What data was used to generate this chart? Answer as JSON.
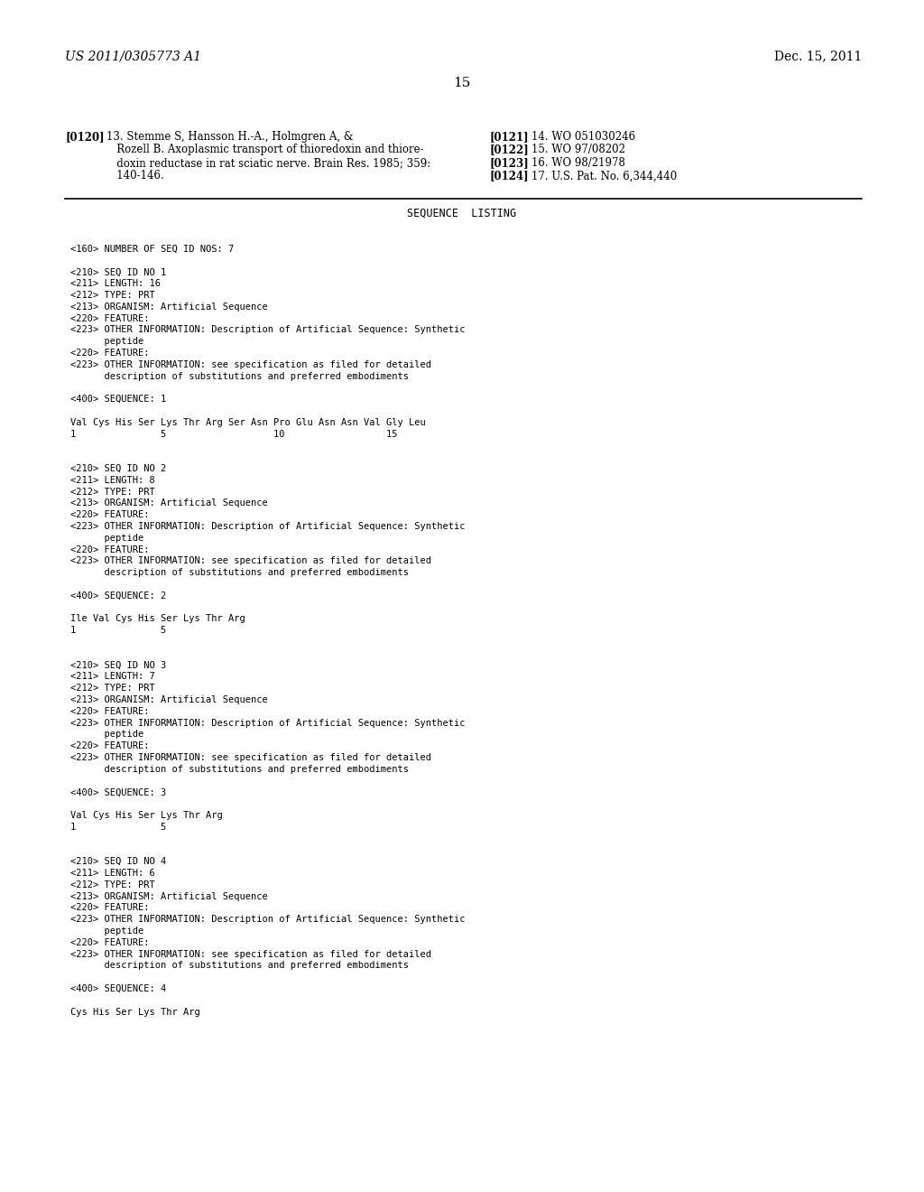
{
  "background_color": "#ffffff",
  "header_left": "US 2011/0305773 A1",
  "header_right": "Dec. 15, 2011",
  "page_number": "15",
  "ref_left_tag": "[0120]",
  "ref_left_lines": [
    "13. Stemme S, Hansson H.-A., Holmgren A, &",
    "   Rozell B. Axoplasmic transport of thioredoxin and thiore-",
    "   doxin reductase in rat sciatic nerve. Brain Res. 1985; 359:",
    "   140-146."
  ],
  "ref_right": [
    {
      "tag": "[0121]",
      "text": "14. WO 051030246"
    },
    {
      "tag": "[0122]",
      "text": "15. WO 97/08202"
    },
    {
      "tag": "[0123]",
      "text": "16. WO 98/21978"
    },
    {
      "tag": "[0124]",
      "text": "17. U.S. Pat. No. 6,344,440"
    }
  ],
  "section_title": "SEQUENCE  LISTING",
  "sequence_content": [
    "",
    "<160> NUMBER OF SEQ ID NOS: 7",
    "",
    "<210> SEQ ID NO 1",
    "<211> LENGTH: 16",
    "<212> TYPE: PRT",
    "<213> ORGANISM: Artificial Sequence",
    "<220> FEATURE:",
    "<223> OTHER INFORMATION: Description of Artificial Sequence: Synthetic",
    "      peptide",
    "<220> FEATURE:",
    "<223> OTHER INFORMATION: see specification as filed for detailed",
    "      description of substitutions and preferred embodiments",
    "",
    "<400> SEQUENCE: 1",
    "",
    "Val Cys His Ser Lys Thr Arg Ser Asn Pro Glu Asn Asn Val Gly Leu",
    "1               5                   10                  15",
    "",
    "",
    "<210> SEQ ID NO 2",
    "<211> LENGTH: 8",
    "<212> TYPE: PRT",
    "<213> ORGANISM: Artificial Sequence",
    "<220> FEATURE:",
    "<223> OTHER INFORMATION: Description of Artificial Sequence: Synthetic",
    "      peptide",
    "<220> FEATURE:",
    "<223> OTHER INFORMATION: see specification as filed for detailed",
    "      description of substitutions and preferred embodiments",
    "",
    "<400> SEQUENCE: 2",
    "",
    "Ile Val Cys His Ser Lys Thr Arg",
    "1               5",
    "",
    "",
    "<210> SEQ ID NO 3",
    "<211> LENGTH: 7",
    "<212> TYPE: PRT",
    "<213> ORGANISM: Artificial Sequence",
    "<220> FEATURE:",
    "<223> OTHER INFORMATION: Description of Artificial Sequence: Synthetic",
    "      peptide",
    "<220> FEATURE:",
    "<223> OTHER INFORMATION: see specification as filed for detailed",
    "      description of substitutions and preferred embodiments",
    "",
    "<400> SEQUENCE: 3",
    "",
    "Val Cys His Ser Lys Thr Arg",
    "1               5",
    "",
    "",
    "<210> SEQ ID NO 4",
    "<211> LENGTH: 6",
    "<212> TYPE: PRT",
    "<213> ORGANISM: Artificial Sequence",
    "<220> FEATURE:",
    "<223> OTHER INFORMATION: Description of Artificial Sequence: Synthetic",
    "      peptide",
    "<220> FEATURE:",
    "<223> OTHER INFORMATION: see specification as filed for detailed",
    "      description of substitutions and preferred embodiments",
    "",
    "<400> SEQUENCE: 4",
    "",
    "Cys His Ser Lys Thr Arg"
  ],
  "mono_font_size": 7.5,
  "header_font_size": 10.0,
  "ref_font_size": 8.5,
  "title_font_size": 8.5,
  "page_num_font_size": 11.0
}
